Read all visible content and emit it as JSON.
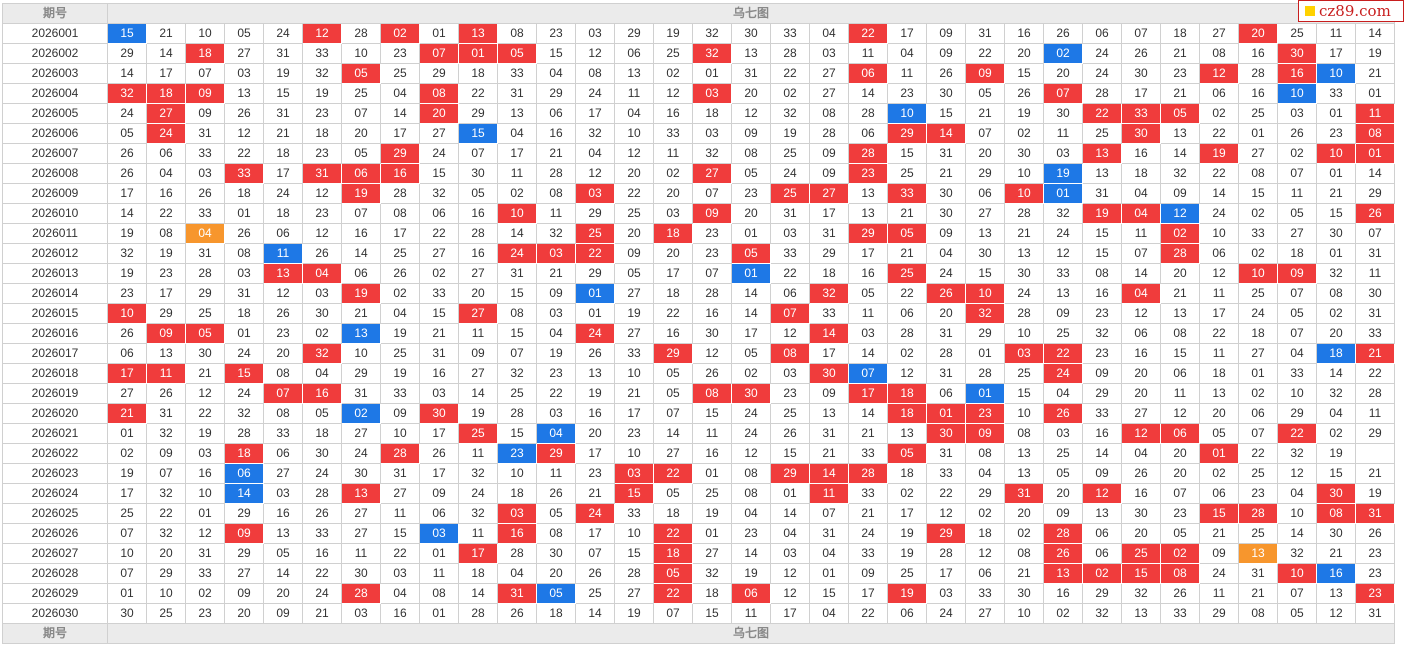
{
  "header": {
    "period_label": "期号",
    "chart_title": "乌七图"
  },
  "footer": {
    "period_label": "期号",
    "chart_title": "乌七图"
  },
  "logo": {
    "text": "cz89.com"
  },
  "colors": {
    "red": "#f03c3c",
    "blue": "#1e78e6",
    "orange": "#f7962d"
  },
  "rows": [
    {
      "period": "2026001",
      "cells": [
        "15",
        "21",
        "10",
        "05",
        "24",
        "12",
        "28",
        "02",
        "01",
        "13",
        "08",
        "23",
        "03",
        "29",
        "19",
        "32",
        "30",
        "33",
        "04",
        "22",
        "17",
        "09",
        "31",
        "16",
        "26",
        "06",
        "07",
        "18",
        "27",
        "20",
        "25",
        "11",
        "14"
      ],
      "marks": "b....r.r.r.........r.........r....r."
    },
    {
      "period": "2026002",
      "cells": [
        "29",
        "14",
        "18",
        "27",
        "31",
        "33",
        "10",
        "23",
        "07",
        "01",
        "05",
        "15",
        "12",
        "06",
        "25",
        "32",
        "13",
        "28",
        "03",
        "11",
        "04",
        "09",
        "22",
        "20",
        "02",
        "24",
        "26",
        "21",
        "08",
        "16",
        "30",
        "17",
        "19"
      ],
      "marks": "..r.....rrr....r........b.....r.."
    },
    {
      "period": "2026003",
      "cells": [
        "14",
        "17",
        "07",
        "03",
        "19",
        "32",
        "05",
        "25",
        "29",
        "18",
        "33",
        "04",
        "08",
        "13",
        "02",
        "01",
        "31",
        "22",
        "27",
        "06",
        "11",
        "26",
        "09",
        "15",
        "20",
        "24",
        "30",
        "23",
        "12",
        "28",
        "16",
        "10",
        "21"
      ],
      "marks": "......r............r..r.....r.rb.r"
    },
    {
      "period": "2026004",
      "cells": [
        "32",
        "18",
        "09",
        "13",
        "15",
        "19",
        "25",
        "04",
        "08",
        "22",
        "31",
        "29",
        "24",
        "11",
        "12",
        "03",
        "20",
        "02",
        "27",
        "14",
        "23",
        "30",
        "05",
        "26",
        "07",
        "28",
        "17",
        "21",
        "06",
        "16",
        "10",
        "33",
        "01"
      ],
      "marks": "rrr.....r......r........r.....b.."
    },
    {
      "period": "2026005",
      "cells": [
        "24",
        "27",
        "09",
        "26",
        "31",
        "23",
        "07",
        "14",
        "20",
        "29",
        "13",
        "06",
        "17",
        "04",
        "16",
        "18",
        "12",
        "32",
        "08",
        "28",
        "10",
        "15",
        "21",
        "19",
        "30",
        "22",
        "33",
        "05",
        "02",
        "25",
        "03",
        "01",
        "11"
      ],
      "marks": ".r......r...........b....rrr....r."
    },
    {
      "period": "2026006",
      "cells": [
        "05",
        "24",
        "31",
        "12",
        "21",
        "18",
        "20",
        "17",
        "27",
        "15",
        "04",
        "16",
        "32",
        "10",
        "33",
        "03",
        "09",
        "19",
        "28",
        "06",
        "29",
        "14",
        "07",
        "02",
        "11",
        "25",
        "30",
        "13",
        "22",
        "01",
        "26",
        "23",
        "08"
      ],
      "marks": ".r.......b..........rr....r.....r..r."
    },
    {
      "period": "2026007",
      "cells": [
        "26",
        "06",
        "33",
        "22",
        "18",
        "23",
        "05",
        "29",
        "24",
        "07",
        "17",
        "21",
        "04",
        "12",
        "11",
        "32",
        "08",
        "25",
        "09",
        "28",
        "15",
        "31",
        "20",
        "30",
        "03",
        "13",
        "16",
        "14",
        "19",
        "27",
        "02",
        "10",
        "01"
      ],
      "marks": ".......r...........r.....r..r..rr..b"
    },
    {
      "period": "2026008",
      "cells": [
        "26",
        "04",
        "03",
        "33",
        "17",
        "31",
        "06",
        "16",
        "15",
        "30",
        "11",
        "28",
        "12",
        "20",
        "02",
        "27",
        "05",
        "24",
        "09",
        "23",
        "25",
        "21",
        "29",
        "10",
        "19",
        "13",
        "18",
        "32",
        "22",
        "08",
        "07",
        "01",
        "14"
      ],
      "marks": "...r.rrr.......r...r....b........"
    },
    {
      "period": "2026009",
      "cells": [
        "17",
        "16",
        "26",
        "18",
        "24",
        "12",
        "19",
        "28",
        "32",
        "05",
        "02",
        "08",
        "03",
        "22",
        "20",
        "07",
        "23",
        "25",
        "27",
        "13",
        "33",
        "30",
        "06",
        "10",
        "01",
        "31",
        "04",
        "09",
        "14",
        "15",
        "11",
        "21",
        "29"
      ],
      "marks": "......r.....r....rr.r..rb........"
    },
    {
      "period": "2026010",
      "cells": [
        "14",
        "22",
        "33",
        "01",
        "18",
        "23",
        "07",
        "08",
        "06",
        "16",
        "10",
        "11",
        "29",
        "25",
        "03",
        "09",
        "20",
        "31",
        "17",
        "13",
        "21",
        "30",
        "27",
        "28",
        "32",
        "19",
        "04",
        "12",
        "24",
        "02",
        "05",
        "15",
        "26"
      ],
      "marks": "..........r....r.........rrb....rr"
    },
    {
      "period": "2026011",
      "cells": [
        "19",
        "08",
        "04",
        "26",
        "06",
        "12",
        "16",
        "17",
        "22",
        "28",
        "14",
        "32",
        "25",
        "20",
        "18",
        "23",
        "01",
        "03",
        "31",
        "29",
        "05",
        "09",
        "13",
        "21",
        "24",
        "15",
        "11",
        "02",
        "10",
        "33",
        "27",
        "30",
        "07"
      ],
      "marks": "..o.........r.r....rr......r......"
    },
    {
      "period": "2026012",
      "cells": [
        "32",
        "19",
        "31",
        "08",
        "11",
        "26",
        "14",
        "25",
        "27",
        "16",
        "24",
        "03",
        "22",
        "09",
        "20",
        "23",
        "05",
        "33",
        "29",
        "17",
        "21",
        "04",
        "30",
        "13",
        "12",
        "15",
        "07",
        "28",
        "06",
        "02",
        "18",
        "01",
        "31"
      ],
      "marks": "....b.....rrr...r..........r......"
    },
    {
      "period": "2026013",
      "cells": [
        "19",
        "23",
        "28",
        "03",
        "13",
        "04",
        "06",
        "26",
        "02",
        "27",
        "31",
        "21",
        "29",
        "05",
        "17",
        "07",
        "01",
        "22",
        "18",
        "16",
        "25",
        "24",
        "15",
        "30",
        "33",
        "08",
        "14",
        "20",
        "12",
        "10",
        "09",
        "32",
        "11"
      ],
      "marks": "....rr..........b...r........rr..r.."
    },
    {
      "period": "2026014",
      "cells": [
        "23",
        "17",
        "29",
        "31",
        "12",
        "03",
        "19",
        "02",
        "33",
        "20",
        "15",
        "09",
        "01",
        "27",
        "18",
        "28",
        "14",
        "06",
        "32",
        "05",
        "22",
        "26",
        "10",
        "24",
        "13",
        "16",
        "04",
        "21",
        "11",
        "25",
        "07",
        "08",
        "30"
      ],
      "marks": "......r.....b.....r..rr...r.......r.."
    },
    {
      "period": "2026015",
      "cells": [
        "10",
        "29",
        "25",
        "18",
        "26",
        "30",
        "21",
        "04",
        "15",
        "27",
        "08",
        "03",
        "01",
        "19",
        "22",
        "16",
        "14",
        "07",
        "33",
        "11",
        "06",
        "20",
        "32",
        "28",
        "09",
        "23",
        "12",
        "13",
        "17",
        "24",
        "05",
        "02",
        "31"
      ],
      "marks": "r........r.......r....r..........brr....r"
    },
    {
      "period": "2026016",
      "cells": [
        "26",
        "09",
        "05",
        "01",
        "23",
        "02",
        "13",
        "19",
        "21",
        "11",
        "15",
        "04",
        "24",
        "27",
        "16",
        "30",
        "17",
        "12",
        "14",
        "03",
        "28",
        "31",
        "29",
        "10",
        "25",
        "32",
        "06",
        "08",
        "22",
        "18",
        "07",
        "20",
        "33"
      ],
      "marks": ".rr...b.....r.....r.................r"
    },
    {
      "period": "2026017",
      "cells": [
        "06",
        "13",
        "30",
        "24",
        "20",
        "32",
        "10",
        "25",
        "31",
        "09",
        "07",
        "19",
        "26",
        "33",
        "29",
        "12",
        "05",
        "08",
        "17",
        "14",
        "02",
        "28",
        "01",
        "03",
        "22",
        "23",
        "16",
        "15",
        "11",
        "27",
        "04",
        "18",
        "21"
      ],
      "marks": ".....r........r..r.....rr......br."
    },
    {
      "period": "2026018",
      "cells": [
        "17",
        "11",
        "21",
        "15",
        "08",
        "04",
        "29",
        "19",
        "16",
        "27",
        "32",
        "23",
        "13",
        "10",
        "05",
        "26",
        "02",
        "03",
        "30",
        "07",
        "12",
        "31",
        "28",
        "25",
        "24",
        "09",
        "20",
        "06",
        "18",
        "01",
        "33",
        "14",
        "22"
      ],
      "marks": "rr.r..............rb....r........r"
    },
    {
      "period": "2026019",
      "cells": [
        "27",
        "26",
        "12",
        "24",
        "07",
        "16",
        "31",
        "33",
        "03",
        "14",
        "25",
        "22",
        "19",
        "21",
        "05",
        "08",
        "30",
        "23",
        "09",
        "17",
        "18",
        "06",
        "01",
        "15",
        "04",
        "29",
        "20",
        "11",
        "13",
        "02",
        "10",
        "32",
        "28"
      ],
      "marks": "....rr.........rr..rr.b..........."
    },
    {
      "period": "2026020",
      "cells": [
        "21",
        "31",
        "22",
        "32",
        "08",
        "05",
        "02",
        "09",
        "30",
        "19",
        "28",
        "03",
        "16",
        "17",
        "07",
        "15",
        "24",
        "25",
        "13",
        "14",
        "18",
        "01",
        "23",
        "10",
        "26",
        "33",
        "27",
        "12",
        "20",
        "06",
        "29",
        "04",
        "11"
      ],
      "marks": "r.....b.r...........rrr.r.........."
    },
    {
      "period": "2026021",
      "cells": [
        "01",
        "32",
        "19",
        "28",
        "33",
        "18",
        "27",
        "10",
        "17",
        "25",
        "15",
        "04",
        "20",
        "23",
        "14",
        "11",
        "24",
        "26",
        "31",
        "21",
        "13",
        "30",
        "09",
        "08",
        "03",
        "16",
        "12",
        "06",
        "05",
        "07",
        "22",
        "02",
        "29"
      ],
      "marks": ".........r.b.........rr...rr..r......"
    },
    {
      "period": "2026022",
      "cells": [
        "02",
        "09",
        "03",
        "18",
        "06",
        "30",
        "24",
        "28",
        "26",
        "11",
        "23",
        "29",
        "17",
        "10",
        "27",
        "16",
        "12",
        "15",
        "21",
        "33",
        "05",
        "31",
        "08",
        "13",
        "25",
        "14",
        "04",
        "20",
        "01",
        "22",
        "32",
        "19"
      ],
      "marks": "...r...r..br........r.......r.....r."
    },
    {
      "period": "2026023",
      "cells": [
        "19",
        "07",
        "16",
        "06",
        "27",
        "24",
        "30",
        "31",
        "17",
        "32",
        "10",
        "11",
        "23",
        "03",
        "22",
        "01",
        "08",
        "29",
        "14",
        "28",
        "18",
        "33",
        "04",
        "13",
        "05",
        "09",
        "26",
        "20",
        "02",
        "25",
        "12",
        "15",
        "21"
      ],
      "marks": "...b.........rr..rrr.............."
    },
    {
      "period": "2026024",
      "cells": [
        "17",
        "32",
        "10",
        "14",
        "03",
        "28",
        "13",
        "27",
        "09",
        "24",
        "18",
        "26",
        "21",
        "15",
        "05",
        "25",
        "08",
        "01",
        "11",
        "33",
        "02",
        "22",
        "29",
        "31",
        "20",
        "12",
        "16",
        "07",
        "06",
        "23",
        "04",
        "30",
        "19"
      ],
      "marks": "...b..r......r....r....r.r.....r..."
    },
    {
      "period": "2026025",
      "cells": [
        "25",
        "22",
        "01",
        "29",
        "16",
        "26",
        "27",
        "11",
        "06",
        "32",
        "03",
        "05",
        "24",
        "33",
        "18",
        "19",
        "04",
        "14",
        "07",
        "21",
        "17",
        "12",
        "02",
        "20",
        "09",
        "13",
        "30",
        "23",
        "15",
        "28",
        "10",
        "08",
        "31"
      ],
      "marks": "..........r.r...............rr.rr.b.."
    },
    {
      "period": "2026026",
      "cells": [
        "07",
        "32",
        "12",
        "09",
        "13",
        "33",
        "27",
        "15",
        "03",
        "11",
        "16",
        "08",
        "17",
        "10",
        "22",
        "01",
        "23",
        "04",
        "31",
        "24",
        "19",
        "29",
        "18",
        "02",
        "28",
        "06",
        "20",
        "05",
        "21",
        "25",
        "14",
        "30",
        "26"
      ],
      "marks": "...r....b.r...r......r..r........r..."
    },
    {
      "period": "2026027",
      "cells": [
        "10",
        "20",
        "31",
        "29",
        "05",
        "16",
        "11",
        "22",
        "01",
        "17",
        "28",
        "30",
        "07",
        "15",
        "18",
        "27",
        "14",
        "03",
        "04",
        "33",
        "19",
        "28",
        "12",
        "08",
        "26",
        "06",
        "25",
        "02",
        "09",
        "13",
        "32",
        "21",
        "23"
      ],
      "marks": ".........r....r.........r.rr.o...."
    },
    {
      "period": "2026028",
      "cells": [
        "07",
        "29",
        "33",
        "27",
        "14",
        "22",
        "30",
        "03",
        "11",
        "18",
        "04",
        "20",
        "26",
        "28",
        "05",
        "32",
        "19",
        "12",
        "01",
        "09",
        "25",
        "17",
        "06",
        "21",
        "13",
        "02",
        "15",
        "08",
        "24",
        "31",
        "10",
        "16",
        "23"
      ],
      "marks": "..............r.........rrrr..rb........"
    },
    {
      "period": "2026029",
      "cells": [
        "01",
        "10",
        "02",
        "09",
        "20",
        "24",
        "28",
        "04",
        "08",
        "14",
        "31",
        "05",
        "25",
        "27",
        "22",
        "18",
        "06",
        "12",
        "15",
        "17",
        "19",
        "03",
        "33",
        "30",
        "16",
        "29",
        "32",
        "26",
        "11",
        "21",
        "07",
        "13",
        "23"
      ],
      "marks": "......r...rb..r.r...r...........r"
    },
    {
      "period": "2026030",
      "cells": [
        "30",
        "25",
        "23",
        "20",
        "09",
        "21",
        "03",
        "16",
        "01",
        "28",
        "26",
        "18",
        "14",
        "19",
        "07",
        "15",
        "11",
        "17",
        "04",
        "22",
        "06",
        "24",
        "27",
        "10",
        "02",
        "32",
        "13",
        "33",
        "29",
        "08",
        "05",
        "12",
        "31"
      ],
      "marks": "................................."
    }
  ]
}
